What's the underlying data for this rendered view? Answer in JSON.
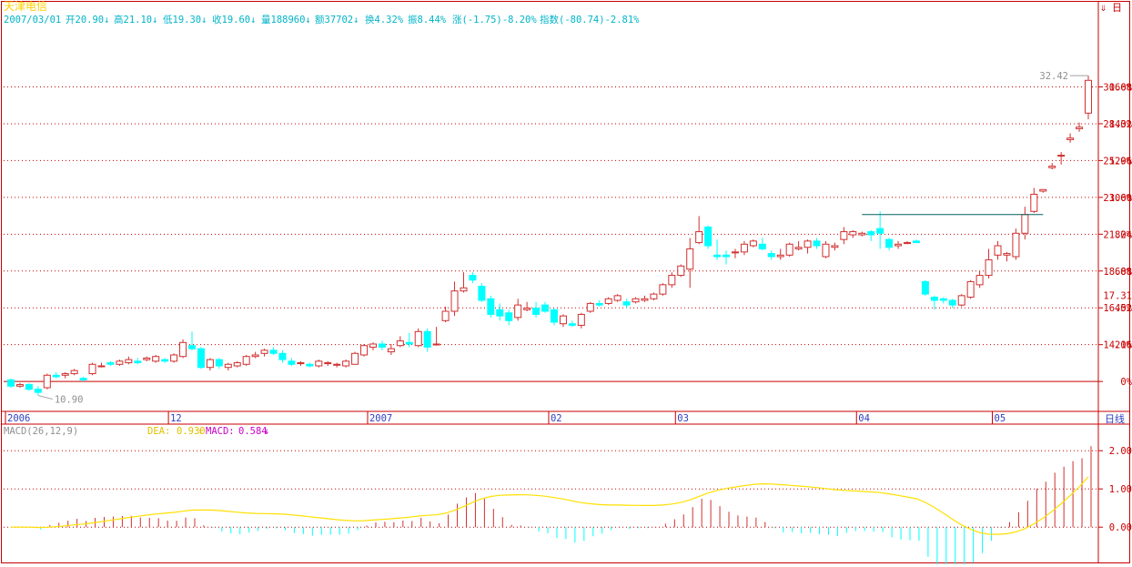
{
  "header": {
    "stock_name": "天津电信",
    "date": "2007/03/01",
    "open": "开20.90↓",
    "high": "高21.10↓",
    "low": "低19.30↓",
    "close": "收19.60↓",
    "volume": "量188960↓",
    "amount": "额37702↓",
    "turnover": "换4.32%",
    "amplitude": "振8.44%",
    "change": "涨(-1.75)-8.20%",
    "index": "指数(-80.74)-2.81%"
  },
  "top_right": {
    "icon": "arrow-down-icon",
    "label": "日"
  },
  "period_label": "日线",
  "colors": {
    "up": "#d03030",
    "down": "#00ffff",
    "grid": "#c80000",
    "axis": "#c80000",
    "header_name": "#ffd000",
    "header_text": "#00b4c8",
    "dif_line": "#ffe000",
    "macd_label": "#c800c8",
    "resistance_line": "#006060"
  },
  "chart_data": [
    {
      "type": "candlestick",
      "price_range": [
        10.0,
        34.5
      ],
      "base_price": 11.8,
      "percent_ticks": [
        "0%",
        "20%",
        "40%",
        "60%",
        "80%",
        "100%",
        "120%",
        "140%",
        "160%"
      ],
      "price_ticks": [
        "14.16",
        "16.52",
        "18.88",
        "21.24",
        "23.60",
        "25.96",
        "28.32",
        "30.68"
      ],
      "current_price": "17.31",
      "high_annotation": "32.42",
      "low_annotation": "10.90",
      "resistance_level": 22.5,
      "x_labels": [
        {
          "label": "2006",
          "index": 0
        },
        {
          "label": "12",
          "index": 18
        },
        {
          "label": "2007",
          "index": 40
        },
        {
          "label": "02",
          "index": 60
        },
        {
          "label": "03",
          "index": 74
        },
        {
          "label": "04",
          "index": 94
        },
        {
          "label": "05",
          "index": 109
        }
      ],
      "candles": [
        [
          11.9,
          11.5,
          12.0,
          11.4
        ],
        [
          11.5,
          11.6,
          11.7,
          11.4
        ],
        [
          11.6,
          11.3,
          11.7,
          11.2
        ],
        [
          11.3,
          11.1,
          11.5,
          10.9
        ],
        [
          11.4,
          12.2,
          12.3,
          11.3
        ],
        [
          12.2,
          12.1,
          12.4,
          12.0
        ],
        [
          12.2,
          12.3,
          12.4,
          12.0
        ],
        [
          12.3,
          12.5,
          12.6,
          12.2
        ],
        [
          12.0,
          11.9,
          12.1,
          11.8
        ],
        [
          12.3,
          12.9,
          13.0,
          12.2
        ],
        [
          12.8,
          12.8,
          13.0,
          12.7
        ],
        [
          13.0,
          12.9,
          13.1,
          12.8
        ],
        [
          12.9,
          13.1,
          13.2,
          12.8
        ],
        [
          13.0,
          13.2,
          13.4,
          12.9
        ],
        [
          13.1,
          13.0,
          13.3,
          12.9
        ],
        [
          13.2,
          13.3,
          13.4,
          13.1
        ],
        [
          13.1,
          13.4,
          13.5,
          13.0
        ],
        [
          13.2,
          13.1,
          13.3,
          13.0
        ],
        [
          13.1,
          13.5,
          13.6,
          13.0
        ],
        [
          13.4,
          14.3,
          14.5,
          13.3
        ],
        [
          14.1,
          13.9,
          15.0,
          13.8
        ],
        [
          13.9,
          12.7,
          14.0,
          12.6
        ],
        [
          12.7,
          13.2,
          13.3,
          12.5
        ],
        [
          13.2,
          12.8,
          13.3,
          12.6
        ],
        [
          12.7,
          12.9,
          13.0,
          12.5
        ],
        [
          12.8,
          13.0,
          13.1,
          12.7
        ],
        [
          12.9,
          13.4,
          13.5,
          12.8
        ],
        [
          13.4,
          13.5,
          13.7,
          13.3
        ],
        [
          13.6,
          13.8,
          13.9,
          13.4
        ],
        [
          13.8,
          13.6,
          14.0,
          13.5
        ],
        [
          13.6,
          13.2,
          13.8,
          13.0
        ],
        [
          13.1,
          12.9,
          13.3,
          12.8
        ],
        [
          13.0,
          13.0,
          13.1,
          12.8
        ],
        [
          12.9,
          12.8,
          13.0,
          12.7
        ],
        [
          12.8,
          13.1,
          13.2,
          12.7
        ],
        [
          13.0,
          13.0,
          13.1,
          12.8
        ],
        [
          12.9,
          12.9,
          13.0,
          12.7
        ],
        [
          12.8,
          13.1,
          13.2,
          12.7
        ],
        [
          12.9,
          13.6,
          13.7,
          12.9
        ],
        [
          13.5,
          14.1,
          14.2,
          13.4
        ],
        [
          14.0,
          14.2,
          14.3,
          13.8
        ],
        [
          14.2,
          14.0,
          14.4,
          13.8
        ],
        [
          13.7,
          13.9,
          14.2,
          13.5
        ],
        [
          14.1,
          14.4,
          14.7,
          14.0
        ],
        [
          14.3,
          14.2,
          14.9,
          14.0
        ],
        [
          14.1,
          15.0,
          15.2,
          14.0
        ],
        [
          15.0,
          14.0,
          15.2,
          13.7
        ],
        [
          14.2,
          14.2,
          15.3,
          14.1
        ],
        [
          15.7,
          16.3,
          16.6,
          15.6
        ],
        [
          16.3,
          17.6,
          18.2,
          16.0
        ],
        [
          17.6,
          17.8,
          18.8,
          17.5
        ],
        [
          18.6,
          18.3,
          18.8,
          18.1
        ],
        [
          17.9,
          17.0,
          18.1,
          16.9
        ],
        [
          17.1,
          16.1,
          17.3,
          15.9
        ],
        [
          16.4,
          16.0,
          16.8,
          15.7
        ],
        [
          16.2,
          15.7,
          16.4,
          15.4
        ],
        [
          15.9,
          16.7,
          17.1,
          15.7
        ],
        [
          16.4,
          16.5,
          16.9,
          16.3
        ],
        [
          16.5,
          16.1,
          16.9,
          15.9
        ],
        [
          16.7,
          16.3,
          16.9,
          16.2
        ],
        [
          16.4,
          15.6,
          16.5,
          15.4
        ],
        [
          15.5,
          16.0,
          16.1,
          15.3
        ],
        [
          15.5,
          15.4,
          15.7,
          15.3
        ],
        [
          15.4,
          16.1,
          16.2,
          15.2
        ],
        [
          16.3,
          16.8,
          16.9,
          16.2
        ],
        [
          16.8,
          16.7,
          17.0,
          16.6
        ],
        [
          16.8,
          17.1,
          17.2,
          16.7
        ],
        [
          17.0,
          17.3,
          17.4,
          16.9
        ],
        [
          16.9,
          16.7,
          17.1,
          16.5
        ],
        [
          16.9,
          17.1,
          17.2,
          16.8
        ],
        [
          17.0,
          17.1,
          17.3,
          16.9
        ],
        [
          17.1,
          17.4,
          17.5,
          17.0
        ],
        [
          17.4,
          18.0,
          18.1,
          17.3
        ],
        [
          18.0,
          18.6,
          18.8,
          17.8
        ],
        [
          18.6,
          19.2,
          19.3,
          18.5
        ],
        [
          19.0,
          20.3,
          21.0,
          17.8
        ],
        [
          20.7,
          21.4,
          22.4,
          20.6
        ],
        [
          21.7,
          20.5,
          21.8,
          20.3
        ],
        [
          19.9,
          19.8,
          20.9,
          19.6
        ],
        [
          19.9,
          19.8,
          20.2,
          19.3
        ],
        [
          20.1,
          20.1,
          20.3,
          19.7
        ],
        [
          20.1,
          20.6,
          20.8,
          19.9
        ],
        [
          20.5,
          20.8,
          20.9,
          20.4
        ],
        [
          20.6,
          20.3,
          21.0,
          20.2
        ],
        [
          20.0,
          19.8,
          20.2,
          19.6
        ],
        [
          19.8,
          19.9,
          20.3,
          19.6
        ],
        [
          19.9,
          20.6,
          20.7,
          19.8
        ],
        [
          20.3,
          20.4,
          20.8,
          20.2
        ],
        [
          20.4,
          20.8,
          20.9,
          20.0
        ],
        [
          20.8,
          20.5,
          21.0,
          20.3
        ],
        [
          19.8,
          20.6,
          20.8,
          19.7
        ],
        [
          20.4,
          20.5,
          20.7,
          20.2
        ],
        [
          20.9,
          21.4,
          21.7,
          20.6
        ],
        [
          21.2,
          21.4,
          21.5,
          21.0
        ],
        [
          21.2,
          21.3,
          21.4,
          21.1
        ],
        [
          21.4,
          21.2,
          21.5,
          20.8
        ],
        [
          21.6,
          21.3,
          22.7,
          20.3
        ],
        [
          20.9,
          20.4,
          21.0,
          20.2
        ],
        [
          20.5,
          20.6,
          20.8,
          20.3
        ],
        [
          20.7,
          20.7,
          20.8,
          20.6
        ],
        [
          20.8,
          20.7,
          20.9,
          20.7
        ],
        [
          18.2,
          17.4,
          18.3,
          17.3
        ],
        [
          17.2,
          17.0,
          17.3,
          16.4
        ],
        [
          17.1,
          17.0,
          17.2,
          16.8
        ],
        [
          17.0,
          16.7,
          17.1,
          16.5
        ],
        [
          16.7,
          17.3,
          17.4,
          16.6
        ],
        [
          17.2,
          18.2,
          18.3,
          17.1
        ],
        [
          18.0,
          18.6,
          18.9,
          17.8
        ],
        [
          18.6,
          19.6,
          20.3,
          18.4
        ],
        [
          19.9,
          20.5,
          20.8,
          19.6
        ],
        [
          19.9,
          20.0,
          20.1,
          19.5
        ],
        [
          19.8,
          21.3,
          21.6,
          19.6
        ],
        [
          21.3,
          22.5,
          23.0,
          20.9
        ],
        [
          22.7,
          23.8,
          24.2,
          22.6
        ],
        [
          24.0,
          24.1,
          24.1,
          23.9
        ],
        [
          25.5,
          25.6,
          25.8,
          25.4
        ],
        [
          26.3,
          26.3,
          26.5,
          25.7
        ],
        [
          27.3,
          27.4,
          27.7,
          27.1
        ],
        [
          28.0,
          28.1,
          28.4,
          27.8
        ],
        [
          29.0,
          31.1,
          31.4,
          28.6
        ]
      ]
    },
    {
      "type": "macd",
      "params": "MACD(26,12,9)",
      "dea_label": "DEA:",
      "dea_value": "0.930",
      "dea_arrow": "↑",
      "macd_label": "MACD:",
      "macd_value": "0.584",
      "macd_arrow": "↓",
      "ylim": [
        -0.9,
        2.6
      ],
      "yticks": [
        "0.00",
        "1.00",
        "2.00"
      ]
    }
  ]
}
